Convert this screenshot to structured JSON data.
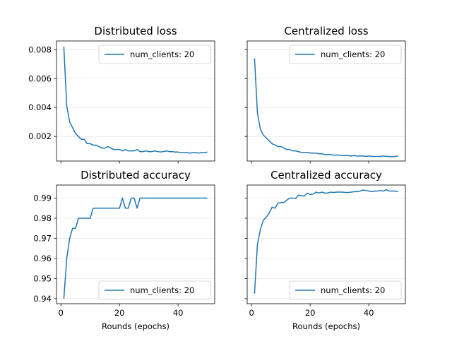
{
  "figure": {
    "xlabel": "Rounds (epochs)",
    "line_color": "#1f77b4"
  },
  "chart_data": [
    {
      "type": "line",
      "title": "Distributed loss",
      "xlabel": "",
      "ylabel": "",
      "xlim": [
        -1.5,
        52.5
      ],
      "ylim": [
        0.0003,
        0.0086
      ],
      "xticks": [
        0,
        20,
        40
      ],
      "yticks": [
        0.002,
        0.004,
        0.006,
        0.008
      ],
      "ytick_labels": [
        "0.002",
        "0.004",
        "0.006",
        "0.008"
      ],
      "grid": "horizontal",
      "legend": "upper-right",
      "series": [
        {
          "name": "num_clients: 20",
          "x": [
            1,
            2,
            3,
            4,
            5,
            6,
            7,
            8,
            9,
            10,
            11,
            12,
            13,
            14,
            15,
            16,
            17,
            18,
            19,
            20,
            21,
            22,
            23,
            24,
            25,
            26,
            27,
            28,
            29,
            30,
            31,
            32,
            33,
            34,
            35,
            36,
            37,
            38,
            39,
            40,
            41,
            42,
            43,
            44,
            45,
            46,
            47,
            48,
            49,
            50
          ],
          "y": [
            0.0082,
            0.0041,
            0.003,
            0.0026,
            0.0022,
            0.002,
            0.0018,
            0.0018,
            0.0015,
            0.0015,
            0.0014,
            0.0014,
            0.0013,
            0.0012,
            0.0012,
            0.0013,
            0.0012,
            0.0011,
            0.0011,
            0.0011,
            0.001,
            0.0011,
            0.001,
            0.001,
            0.001,
            0.0011,
            0.00095,
            0.00095,
            0.001,
            0.00095,
            0.00095,
            0.001,
            0.00095,
            0.00093,
            0.00095,
            0.001,
            0.00095,
            0.00095,
            0.00092,
            0.00092,
            0.00088,
            0.00088,
            0.00088,
            0.00085,
            0.00088,
            0.00088,
            0.00085,
            0.00088,
            0.00088,
            0.00092
          ]
        }
      ]
    },
    {
      "type": "line",
      "title": "Centralized loss",
      "xlabel": "",
      "ylabel": "",
      "xlim": [
        -1.5,
        52.5
      ],
      "ylim": [
        0.0003,
        0.0086
      ],
      "xticks": [
        0,
        20,
        40
      ],
      "yticks": [
        0.002,
        0.004,
        0.006,
        0.008
      ],
      "ytick_labels": [
        "",
        "",
        "",
        ""
      ],
      "grid": "horizontal",
      "legend": "upper-right",
      "series": [
        {
          "name": "num_clients: 20",
          "x": [
            1,
            2,
            3,
            4,
            5,
            6,
            7,
            8,
            9,
            10,
            11,
            12,
            13,
            14,
            15,
            16,
            17,
            18,
            19,
            20,
            21,
            22,
            23,
            24,
            25,
            26,
            27,
            28,
            29,
            30,
            31,
            32,
            33,
            34,
            35,
            36,
            37,
            38,
            39,
            40,
            41,
            42,
            43,
            44,
            45,
            46,
            47,
            48,
            49,
            50
          ],
          "y": [
            0.0074,
            0.0036,
            0.0025,
            0.0021,
            0.0019,
            0.0017,
            0.0015,
            0.0014,
            0.0013,
            0.0013,
            0.0012,
            0.0011,
            0.0011,
            0.001,
            0.001,
            0.00095,
            0.0009,
            0.0009,
            0.0009,
            0.00085,
            0.00085,
            0.00085,
            0.0008,
            0.0008,
            0.00075,
            0.00075,
            0.00075,
            0.0007,
            0.00072,
            0.0007,
            0.00068,
            0.00068,
            0.00068,
            0.00065,
            0.00068,
            0.00065,
            0.00065,
            0.00065,
            0.00062,
            0.00065,
            0.00062,
            0.00062,
            0.00062,
            0.00062,
            0.00065,
            0.00062,
            0.00062,
            0.0006,
            0.00062,
            0.00065
          ]
        }
      ]
    },
    {
      "type": "line",
      "title": "Distributed accuracy",
      "xlabel": "Rounds (epochs)",
      "ylabel": "",
      "xlim": [
        -1.5,
        52.5
      ],
      "ylim": [
        0.9375,
        0.9965
      ],
      "xticks": [
        0,
        20,
        40
      ],
      "xtick_labels": [
        "0",
        "20",
        "40"
      ],
      "yticks": [
        0.94,
        0.95,
        0.96,
        0.97,
        0.98,
        0.99
      ],
      "ytick_labels": [
        "0.94",
        "0.95",
        "0.96",
        "0.97",
        "0.98",
        "0.99"
      ],
      "grid": "horizontal",
      "legend": "lower-right",
      "series": [
        {
          "name": "num_clients: 20",
          "x": [
            1,
            2,
            3,
            4,
            5,
            6,
            7,
            8,
            9,
            10,
            11,
            12,
            13,
            14,
            15,
            16,
            17,
            18,
            19,
            20,
            21,
            22,
            23,
            24,
            25,
            26,
            27,
            28,
            29,
            30,
            31,
            32,
            33,
            34,
            35,
            36,
            37,
            38,
            39,
            40,
            41,
            42,
            43,
            44,
            45,
            46,
            47,
            48,
            49,
            50
          ],
          "y": [
            0.94,
            0.96,
            0.97,
            0.975,
            0.975,
            0.98,
            0.98,
            0.98,
            0.98,
            0.98,
            0.985,
            0.985,
            0.985,
            0.985,
            0.985,
            0.985,
            0.985,
            0.985,
            0.985,
            0.985,
            0.99,
            0.985,
            0.985,
            0.99,
            0.99,
            0.985,
            0.99,
            0.99,
            0.99,
            0.99,
            0.99,
            0.99,
            0.99,
            0.99,
            0.99,
            0.99,
            0.99,
            0.99,
            0.99,
            0.99,
            0.99,
            0.99,
            0.99,
            0.99,
            0.99,
            0.99,
            0.99,
            0.99,
            0.99,
            0.99
          ]
        }
      ]
    },
    {
      "type": "line",
      "title": "Centralized accuracy",
      "xlabel": "Rounds (epochs)",
      "ylabel": "",
      "xlim": [
        -1.5,
        52.5
      ],
      "ylim": [
        0.9375,
        0.9965
      ],
      "xticks": [
        0,
        20,
        40
      ],
      "xtick_labels": [
        "0",
        "20",
        "40"
      ],
      "yticks": [
        0.94,
        0.95,
        0.96,
        0.97,
        0.98,
        0.99
      ],
      "ytick_labels": [
        "",
        "",
        "",
        "",
        "",
        ""
      ],
      "grid": "horizontal",
      "legend": "lower-right",
      "series": [
        {
          "name": "num_clients: 20",
          "x": [
            1,
            2,
            3,
            4,
            5,
            6,
            7,
            8,
            9,
            10,
            11,
            12,
            13,
            14,
            15,
            16,
            17,
            18,
            19,
            20,
            21,
            22,
            23,
            24,
            25,
            26,
            27,
            28,
            29,
            30,
            31,
            32,
            33,
            34,
            35,
            36,
            37,
            38,
            39,
            40,
            41,
            42,
            43,
            44,
            45,
            46,
            47,
            48,
            49,
            50
          ],
          "y": [
            0.9425,
            0.967,
            0.9745,
            0.979,
            0.9805,
            0.9825,
            0.9855,
            0.985,
            0.9875,
            0.9878,
            0.9878,
            0.989,
            0.99,
            0.99,
            0.9898,
            0.9915,
            0.9912,
            0.991,
            0.9925,
            0.9918,
            0.992,
            0.993,
            0.9925,
            0.993,
            0.9925,
            0.9925,
            0.993,
            0.9928,
            0.993,
            0.993,
            0.993,
            0.9928,
            0.9928,
            0.993,
            0.9932,
            0.9932,
            0.9935,
            0.994,
            0.9938,
            0.9935,
            0.9932,
            0.9935,
            0.9935,
            0.9938,
            0.9935,
            0.9942,
            0.9935,
            0.9935,
            0.9935,
            0.9932
          ]
        }
      ]
    }
  ]
}
